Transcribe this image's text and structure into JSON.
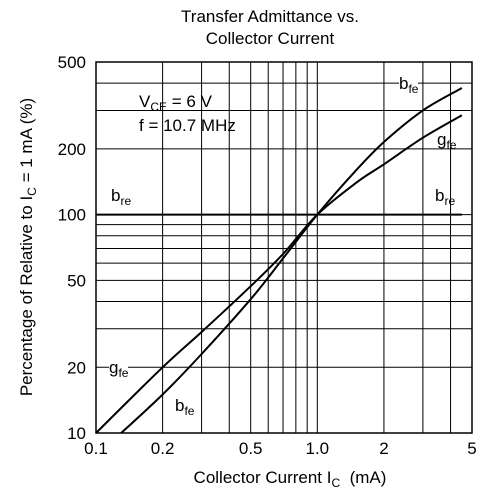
{
  "chart_data": {
    "type": "line",
    "title_line1": "Transfer Admittance vs.",
    "title_line2": "Collector Current",
    "xlabel": {
      "text": "Collector Current I",
      "sub": "C",
      "unit": "(mA)"
    },
    "ylabel": {
      "text": "Percentage of Relative to I",
      "sub": "C",
      "rest": "= 1 mA (%)"
    },
    "x_scale": "log",
    "y_scale": "log",
    "xlim": [
      0.1,
      5
    ],
    "ylim": [
      10,
      500
    ],
    "x_ticks": [
      0.1,
      0.2,
      0.5,
      1.0,
      2,
      5
    ],
    "x_tick_labels": [
      "0.1",
      "0.2",
      "0.5",
      "1.0",
      "2",
      "5"
    ],
    "y_ticks": [
      10,
      20,
      50,
      100,
      200,
      500
    ],
    "y_tick_labels": [
      "10",
      "20",
      "50",
      "100",
      "200",
      "500"
    ],
    "grid": true,
    "conditions": {
      "line1_main": "V",
      "line1_sub": "CE",
      "line1_rest": " = 6 V",
      "line2": "f = 10.7 MHz"
    },
    "series": [
      {
        "name_main": "b",
        "name_sub": "fe",
        "x": [
          0.13,
          0.2,
          0.3,
          0.5,
          0.7,
          1.0,
          1.5,
          2.0,
          3.0,
          4.5
        ],
        "y": [
          10,
          15,
          23,
          41,
          63,
          100,
          160,
          215,
          300,
          380
        ]
      },
      {
        "name_main": "g",
        "name_sub": "fe",
        "x": [
          0.1,
          0.2,
          0.3,
          0.5,
          0.7,
          1.0,
          1.5,
          2.0,
          3.0,
          4.5
        ],
        "y": [
          10,
          20,
          29,
          47,
          66,
          100,
          140,
          170,
          225,
          285
        ]
      },
      {
        "name_main": "b",
        "name_sub": "re",
        "x": [
          0.1,
          4.5
        ],
        "y": [
          100,
          100
        ]
      }
    ]
  }
}
